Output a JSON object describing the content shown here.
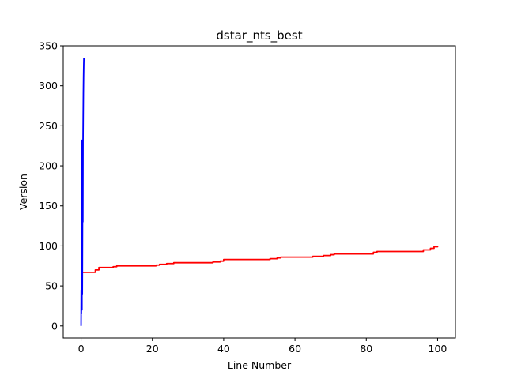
{
  "chart_data": {
    "type": "line",
    "title": "dstar_nts_best",
    "xlabel": "Line Number",
    "ylabel": "Version",
    "xlim": [
      -5,
      105
    ],
    "ylim": [
      -15,
      350
    ],
    "xticks": [
      0,
      20,
      40,
      60,
      80,
      100
    ],
    "yticks": [
      0,
      50,
      100,
      150,
      200,
      250,
      300,
      350
    ],
    "grid": false,
    "legend": "none",
    "series": [
      {
        "color": "#ff0000",
        "step": true,
        "x": [
          0,
          3,
          4,
          5,
          9,
          10,
          20,
          21,
          22,
          24,
          26,
          36,
          37,
          39,
          40,
          52,
          53,
          55,
          56,
          64,
          65,
          67,
          68,
          70,
          71,
          81,
          82,
          83,
          95,
          96,
          98,
          99,
          100
        ],
        "y": [
          67,
          67,
          70,
          73,
          74,
          75,
          75,
          76,
          77,
          78,
          79,
          79,
          80,
          81,
          83,
          83,
          84,
          85,
          86,
          86,
          87,
          87,
          88,
          89,
          90,
          90,
          92,
          93,
          93,
          95,
          97,
          99,
          100
        ]
      },
      {
        "color": "#0000ff",
        "step": false,
        "x": [
          0,
          0.05,
          0.08,
          0.12,
          0.15,
          0.18,
          0.2,
          0.22,
          0.25,
          0.28,
          0.3,
          0.33,
          0.35,
          0.38,
          0.4,
          0.45,
          0.5,
          0.55,
          0.6,
          0.65,
          0.7,
          0.75,
          0.8
        ],
        "y": [
          0,
          45,
          15,
          80,
          30,
          130,
          60,
          175,
          20,
          232,
          70,
          140,
          40,
          80,
          110,
          185,
          130,
          230,
          260,
          290,
          310,
          325,
          335
        ]
      }
    ]
  }
}
